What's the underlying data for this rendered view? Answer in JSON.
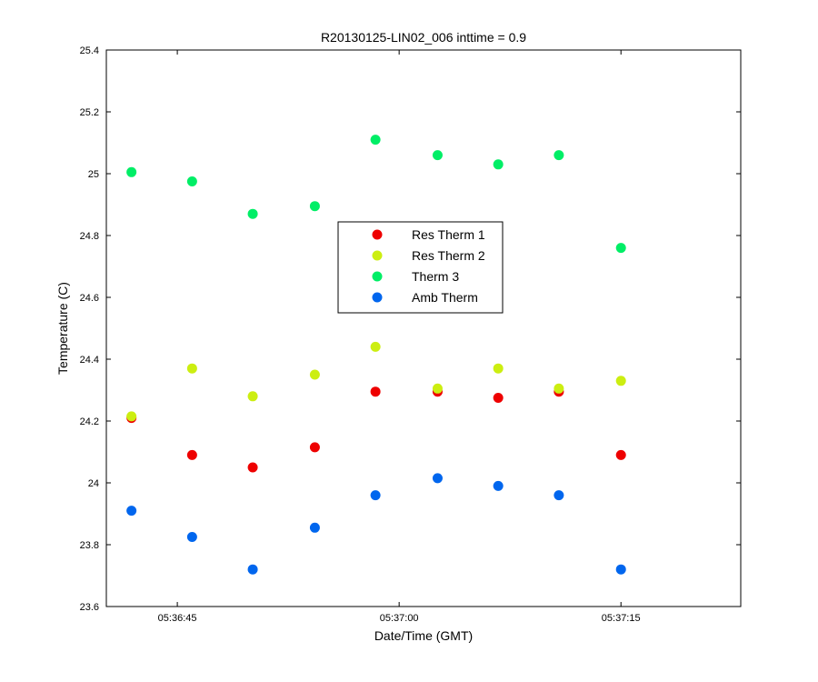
{
  "chart_data": {
    "type": "scatter",
    "title": "R20130125-LIN02_006 inttime = 0.9",
    "xlabel": "Date/Time (GMT)",
    "ylabel": "Temperature (C)",
    "xlim": [
      "05:36:40.2",
      "05:37:23.1"
    ],
    "ylim": [
      23.6,
      25.4
    ],
    "x_ticks": [
      "05:36:45",
      "05:37:00",
      "05:37:15"
    ],
    "y_ticks": [
      "23.6",
      "23.8",
      "24",
      "24.2",
      "24.4",
      "24.6",
      "24.8",
      "25",
      "25.2",
      "25.4"
    ],
    "x": [
      "05:36:41.9",
      "05:36:46.0",
      "05:36:50.1",
      "05:36:54.3",
      "05:36:58.4",
      "05:37:02.6",
      "05:37:06.7",
      "05:37:10.8",
      "05:37:15.0"
    ],
    "grid": false,
    "legend_position": "center",
    "series": [
      {
        "name": "Res Therm 1",
        "color": "#ee0000",
        "values": [
          24.21,
          24.09,
          24.05,
          24.115,
          24.295,
          24.295,
          24.275,
          24.295,
          24.09
        ]
      },
      {
        "name": "Res Therm 2",
        "color": "#ccee11",
        "values": [
          24.215,
          24.37,
          24.28,
          24.35,
          24.44,
          24.305,
          24.37,
          24.305,
          24.33
        ]
      },
      {
        "name": "Therm 3",
        "color": "#00ee66",
        "values": [
          25.005,
          24.975,
          24.87,
          24.895,
          25.11,
          25.06,
          25.03,
          25.06,
          24.76
        ]
      },
      {
        "name": "Amb Therm",
        "color": "#0066ee",
        "values": [
          23.91,
          23.825,
          23.72,
          23.855,
          23.96,
          24.015,
          23.99,
          23.96,
          23.72
        ]
      }
    ]
  }
}
